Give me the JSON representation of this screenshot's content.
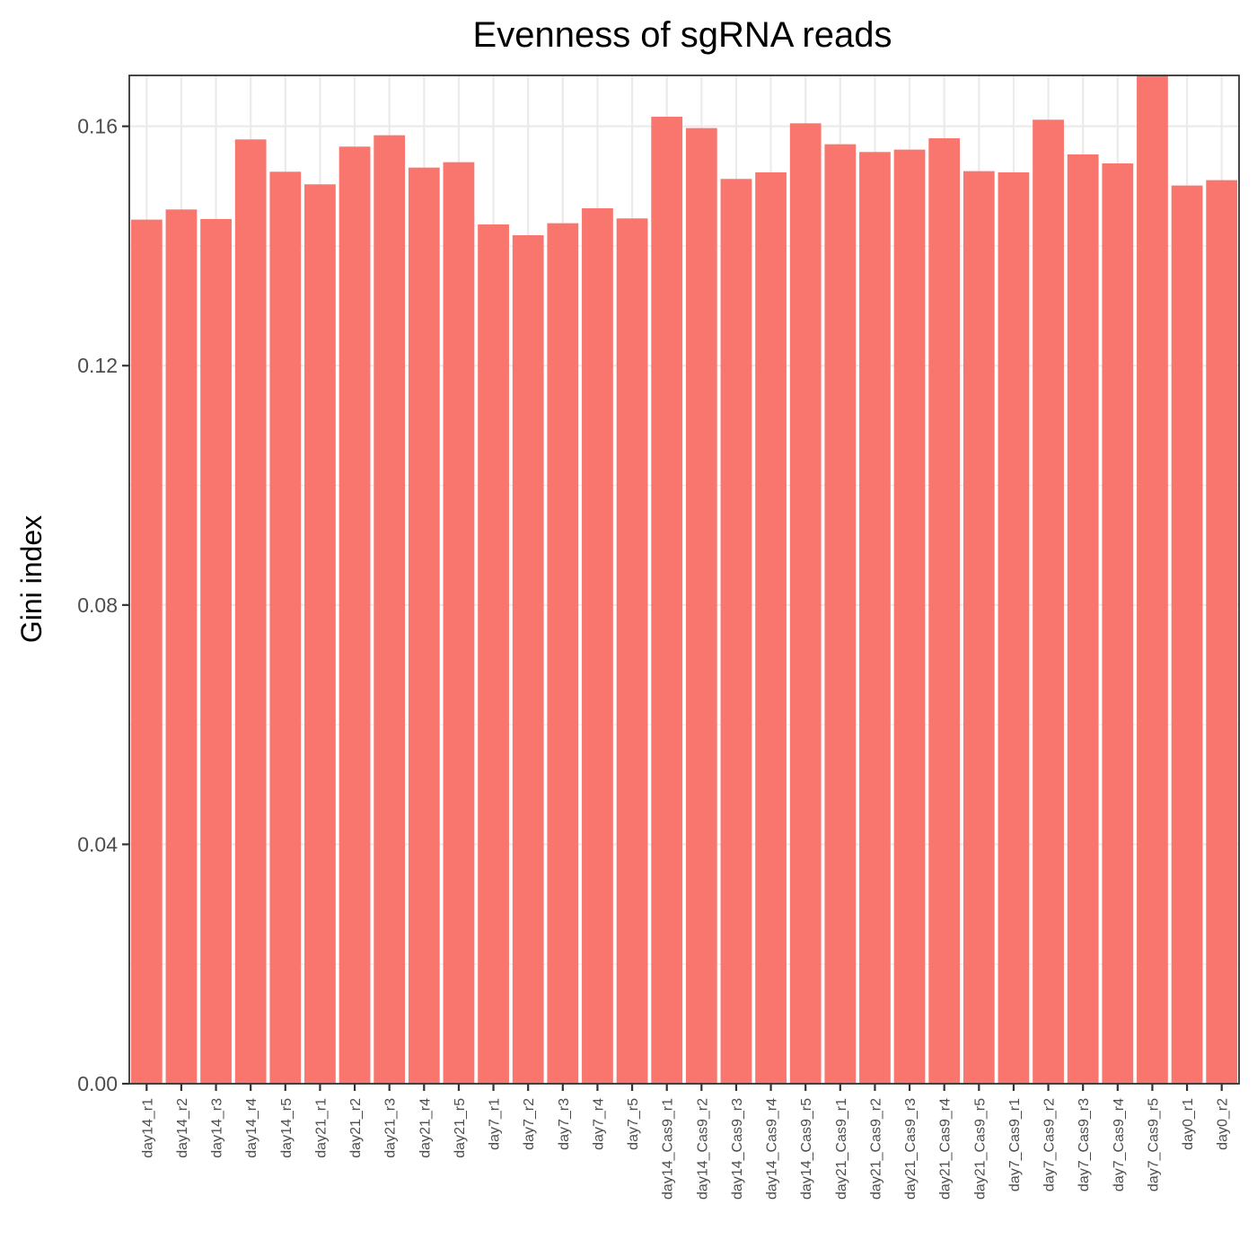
{
  "chart_data": {
    "type": "bar",
    "title": "Evenness of sgRNA reads",
    "xlabel": "",
    "ylabel": "Gini index",
    "ylim": [
      0,
      0.1685
    ],
    "yticks": [
      0.0,
      0.04,
      0.08,
      0.12,
      0.16
    ],
    "ytick_labels": [
      "0.00",
      "0.04",
      "0.08",
      "0.12",
      "0.16"
    ],
    "grid": true,
    "bar_color": "#F8766D",
    "categories": [
      "day14_r1",
      "day14_r2",
      "day14_r3",
      "day14_r4",
      "day14_r5",
      "day21_r1",
      "day21_r2",
      "day21_r3",
      "day21_r4",
      "day21_r5",
      "day7_r1",
      "day7_r2",
      "day7_r3",
      "day7_r4",
      "day7_r5",
      "day14_Cas9_r1",
      "day14_Cas9_r2",
      "day14_Cas9_r3",
      "day14_Cas9_r4",
      "day14_Cas9_r5",
      "day21_Cas9_r1",
      "day21_Cas9_r2",
      "day21_Cas9_r3",
      "day21_Cas9_r4",
      "day21_Cas9_r5",
      "day7_Cas9_r1",
      "day7_Cas9_r2",
      "day7_Cas9_r3",
      "day7_Cas9_r4",
      "day7_Cas9_r5",
      "day0_r1",
      "day0_r2"
    ],
    "values": [
      0.1444,
      0.1461,
      0.1445,
      0.1578,
      0.1524,
      0.1503,
      0.1566,
      0.1585,
      0.1531,
      0.154,
      0.1436,
      0.1418,
      0.1438,
      0.1463,
      0.1446,
      0.1616,
      0.1597,
      0.1512,
      0.1523,
      0.1605,
      0.157,
      0.1557,
      0.1561,
      0.158,
      0.1525,
      0.1523,
      0.1611,
      0.1553,
      0.1538,
      0.1685,
      0.1501,
      0.151
    ]
  }
}
